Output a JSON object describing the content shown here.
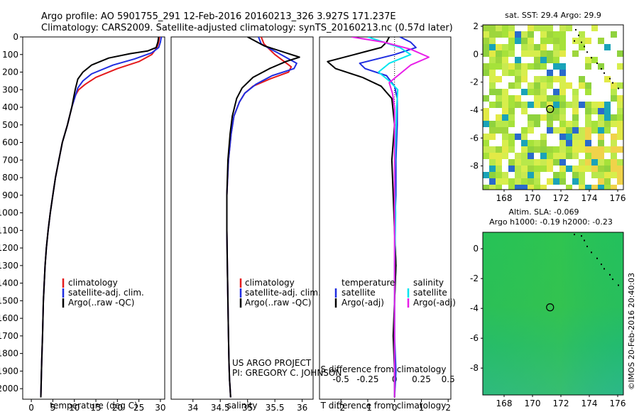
{
  "header": {
    "line1": "Argo profile: AO 5901755_291 12-Feb-2016 20160213_326 3.927S 171.237E",
    "line2": "Climatology: CARS2009. Satellite-adjusted climatology: synTS_20160213.nc (0.57d later)"
  },
  "colors": {
    "clim": "#e41a1c",
    "sat": "#1f2de0",
    "argo": "#000000",
    "sat_s": "#00e5ee",
    "argo_s": "#e81ee8"
  },
  "credit": {
    "project": "US ARGO PROJECT",
    "pi": "PI: GREGORY C. JOHNSON"
  },
  "stamp": "©IMOS 20-Feb-2016 20:40:03",
  "chart_data": [
    {
      "type": "line",
      "name": "temperature-profile",
      "xlabel": "temperature (deg C)",
      "xlim": [
        -2,
        31
      ],
      "xticks": [
        0,
        5,
        10,
        15,
        20,
        25,
        30
      ],
      "ylim": [
        2060,
        0
      ],
      "yticks": [
        0,
        100,
        200,
        300,
        400,
        500,
        600,
        700,
        800,
        900,
        1000,
        1100,
        1200,
        1300,
        1400,
        1500,
        1600,
        1700,
        1800,
        1900,
        2000
      ],
      "legend": [
        "climatology",
        "satellite-adj. clim.",
        "Argo(..raw -QC)"
      ],
      "series": [
        {
          "name": "climatology",
          "color": "clim",
          "x": [
            29.8,
            29.6,
            29.2,
            28,
            25,
            20,
            15,
            12.5,
            11,
            10.3,
            9.4,
            8.4,
            7.2,
            6.4,
            5.6,
            5,
            4.4,
            3.9,
            3.5,
            3.2,
            2.8,
            2.6,
            2.4,
            2.3,
            2.25,
            2.2
          ],
          "y": [
            0,
            30,
            60,
            100,
            140,
            180,
            230,
            270,
            300,
            330,
            400,
            500,
            600,
            700,
            800,
            900,
            1000,
            1100,
            1200,
            1300,
            1500,
            1700,
            1850,
            1950,
            2000,
            2050
          ]
        },
        {
          "name": "satellite-adj. clim.",
          "color": "sat",
          "x": [
            30.2,
            30,
            29.6,
            28,
            24,
            19,
            14,
            12,
            10.8,
            10.3,
            9.4,
            8.4,
            7.2,
            6.4,
            5.6,
            5,
            4.4,
            3.9,
            3.5,
            3.2,
            2.8,
            2.6,
            2.4,
            2.3,
            2.25,
            2.2
          ],
          "y": [
            0,
            30,
            60,
            90,
            125,
            160,
            210,
            250,
            290,
            330,
            400,
            500,
            600,
            700,
            800,
            900,
            1000,
            1100,
            1200,
            1300,
            1500,
            1700,
            1850,
            1950,
            2000,
            2050
          ]
        },
        {
          "name": "Argo",
          "color": "argo",
          "x": [
            29.6,
            29.4,
            29,
            27,
            23,
            18,
            14,
            12,
            10.8,
            10.2,
            9.4,
            8.4,
            7.2,
            6.4,
            5.6,
            5,
            4.4,
            3.9,
            3.5,
            3.2,
            2.8,
            2.6,
            2.4,
            2.3,
            2.25,
            2.2
          ],
          "y": [
            0,
            30,
            60,
            80,
            95,
            120,
            160,
            200,
            240,
            300,
            400,
            500,
            600,
            700,
            800,
            900,
            1000,
            1100,
            1200,
            1300,
            1500,
            1700,
            1850,
            1950,
            2000,
            2050
          ]
        }
      ]
    },
    {
      "type": "line",
      "name": "salinity-profile",
      "xlabel": "salinity",
      "xlim": [
        33.6,
        36.2
      ],
      "xticks": [
        34,
        34.5,
        35,
        35.5,
        36
      ],
      "ylim": [
        2060,
        0
      ],
      "legend": [
        "climatology",
        "satellite-adj. clim.",
        "Argo(..raw -QC)"
      ],
      "series": [
        {
          "name": "climatology",
          "color": "clim",
          "x": [
            35.25,
            35.3,
            35.5,
            35.8,
            35.75,
            35.4,
            35.1,
            34.95,
            34.85,
            34.75,
            34.7,
            34.65,
            34.62,
            34.62,
            34.63,
            34.64,
            34.65,
            34.66,
            34.67,
            34.68,
            34.69
          ],
          "y": [
            0,
            40,
            100,
            170,
            200,
            240,
            280,
            320,
            370,
            450,
            550,
            700,
            900,
            1100,
            1300,
            1500,
            1700,
            1850,
            1950,
            2000,
            2050
          ]
        },
        {
          "name": "satellite-adj. clim.",
          "color": "sat",
          "x": [
            35.2,
            35.25,
            35.55,
            35.9,
            35.85,
            35.45,
            35.15,
            34.95,
            34.85,
            34.75,
            34.7,
            34.65,
            34.62,
            34.62,
            34.63,
            34.64,
            34.65,
            34.66,
            34.67,
            34.68,
            34.69
          ],
          "y": [
            0,
            40,
            90,
            150,
            180,
            220,
            270,
            320,
            370,
            450,
            550,
            700,
            900,
            1100,
            1300,
            1500,
            1700,
            1850,
            1950,
            2000,
            2050
          ]
        },
        {
          "name": "Argo",
          "color": "argo",
          "x": [
            35.0,
            35.3,
            35.7,
            35.95,
            35.7,
            35.4,
            35.1,
            34.9,
            34.8,
            34.72,
            34.68,
            34.64,
            34.62,
            34.62,
            34.63,
            34.64,
            34.65,
            34.66,
            34.67,
            34.68,
            34.69
          ],
          "y": [
            0,
            50,
            90,
            115,
            140,
            180,
            230,
            290,
            350,
            450,
            550,
            700,
            900,
            1100,
            1300,
            1500,
            1700,
            1850,
            1950,
            2000,
            2050
          ]
        }
      ]
    },
    {
      "type": "line",
      "name": "difference-profile",
      "xlabel": "T difference from climatology",
      "xlabel_top": "S difference from climatology",
      "xlim": [
        -2.8,
        2.1
      ],
      "xticks": [
        -2,
        -1,
        0,
        1,
        2
      ],
      "xticks_top": [
        -0.5,
        -0.25,
        0,
        0.25,
        0.5
      ],
      "ylim": [
        2060,
        0
      ],
      "legend_headers": [
        "temperature",
        "salinity"
      ],
      "legend": [
        "satellite",
        "Argo(-adj)",
        "satellite",
        "Argo(-adj)"
      ],
      "series": [
        {
          "name": "T satellite",
          "color": "sat",
          "x": [
            0.2,
            0.6,
            0.8,
            0,
            -1.3,
            -1.1,
            -0.3,
            0,
            0.1,
            0.1,
            0.05,
            0.05,
            0,
            0.05,
            0,
            0,
            0.05,
            0
          ],
          "y": [
            0,
            30,
            60,
            100,
            150,
            180,
            220,
            280,
            350,
            500,
            700,
            900,
            1100,
            1300,
            1500,
            1700,
            1900,
            2050
          ]
        },
        {
          "name": "T Argo(-adj)",
          "color": "argo",
          "x": [
            -0.2,
            -0.3,
            -0.5,
            -1.5,
            -2.5,
            -2.2,
            -1.2,
            -0.5,
            -0.1,
            0,
            -0.1,
            -0.05,
            0,
            0.05,
            0,
            -0.05,
            0,
            0
          ],
          "y": [
            0,
            30,
            60,
            100,
            140,
            180,
            230,
            280,
            350,
            500,
            700,
            900,
            1100,
            1300,
            1500,
            1700,
            1900,
            2050
          ]
        },
        {
          "name": "S satellite",
          "color": "sat_s",
          "x": [
            -0.25,
            -0.1,
            0.05,
            0.15,
            -0.05,
            -0.15,
            -0.05,
            0.03,
            0.02,
            0.01,
            0,
            0.01,
            0,
            0,
            0,
            0,
            0
          ],
          "y": [
            0,
            30,
            60,
            100,
            150,
            200,
            250,
            300,
            400,
            600,
            800,
            1000,
            1300,
            1500,
            1700,
            1900,
            2050
          ]
        },
        {
          "name": "S Argo(-adj)",
          "color": "argo_s",
          "x": [
            -0.4,
            -0.1,
            0.15,
            0.32,
            0.15,
            0.05,
            -0.05,
            -0.02,
            0,
            0,
            0,
            0
          ],
          "y": [
            0,
            30,
            70,
            115,
            160,
            210,
            260,
            320,
            400,
            700,
            1000,
            2050
          ]
        }
      ]
    },
    {
      "type": "heatmap",
      "name": "sst-map",
      "title": "sat. SST: 29.4 Argo: 29.9",
      "xticks": [
        168,
        170,
        172,
        174,
        176
      ],
      "yticks": [
        2,
        0,
        -2,
        -4,
        -6,
        -8
      ],
      "argo_position": {
        "lon": 171.237,
        "lat": -3.927
      }
    },
    {
      "type": "heatmap",
      "name": "sla-map",
      "title_line1": "Altim. SLA: -0.069",
      "title_line2": "Argo h1000: -0.19 h2000: -0.23",
      "xticks": [
        168,
        170,
        172,
        174,
        176
      ],
      "yticks": [
        0,
        -2,
        -4,
        -6,
        -8
      ],
      "argo_position": {
        "lon": 171.237,
        "lat": -3.927
      }
    }
  ]
}
